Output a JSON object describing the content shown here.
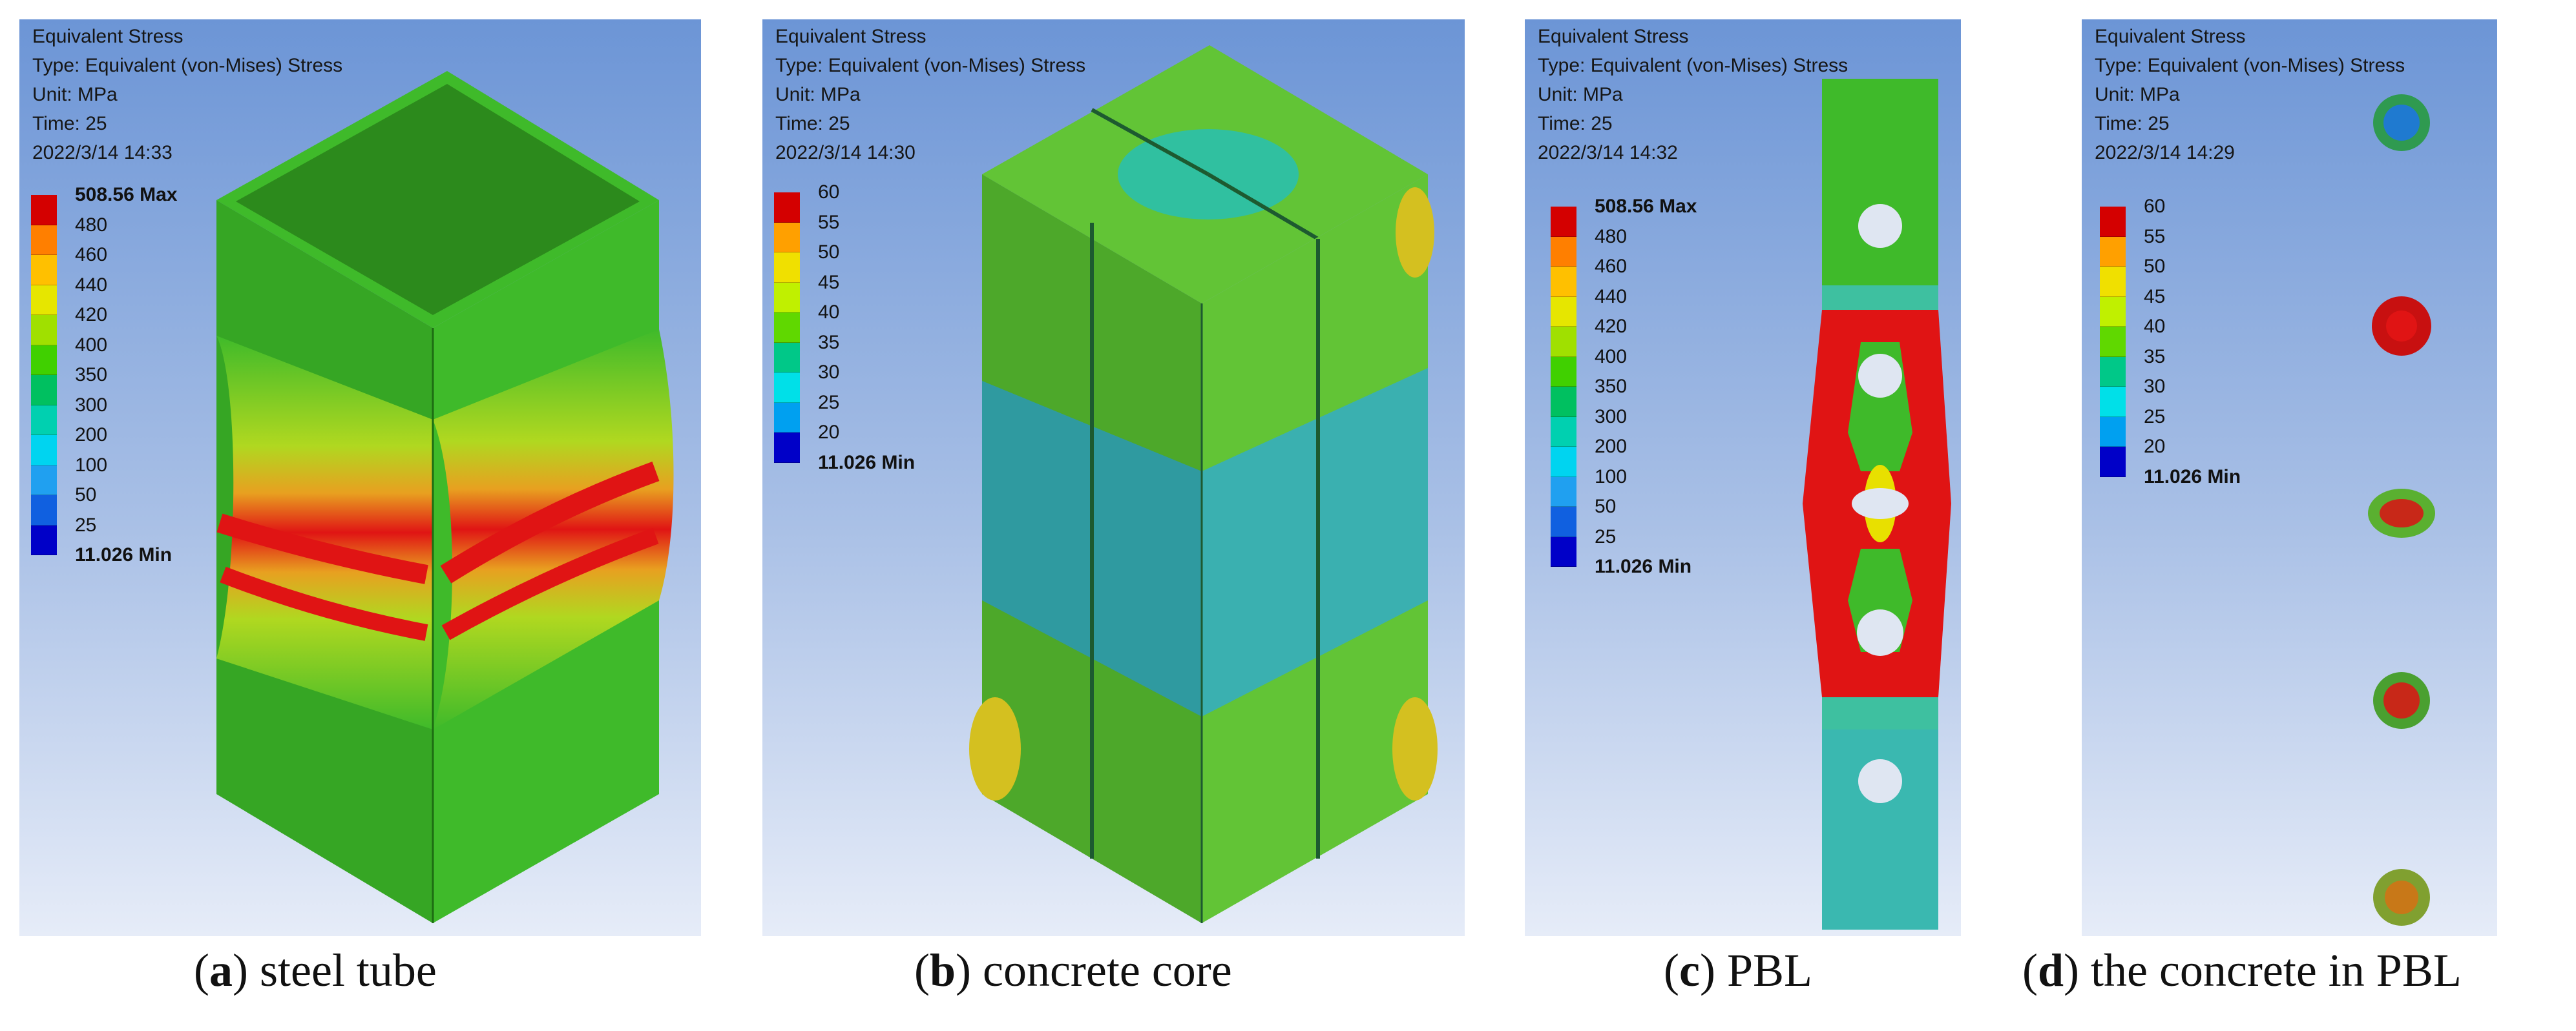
{
  "panels": [
    {
      "id": "a",
      "info": [
        "Equivalent Stress",
        "Type: Equivalent (von-Mises) Stress",
        "Unit: MPa",
        "Time: 25",
        "2022/3/14 14:33"
      ],
      "legend": [
        "508.56 Max",
        "480",
        "460",
        "440",
        "420",
        "400",
        "350",
        "300",
        "200",
        "100",
        "50",
        "25",
        "11.026 Min"
      ],
      "caption_letter": "a",
      "caption_text": "steel tube"
    },
    {
      "id": "b",
      "info": [
        "Equivalent Stress",
        "Type: Equivalent (von-Mises) Stress",
        "Unit: MPa",
        "Time: 25",
        "2022/3/14 14:30"
      ],
      "legend": [
        "60",
        "55",
        "50",
        "45",
        "40",
        "35",
        "30",
        "25",
        "20",
        "11.026 Min"
      ],
      "caption_letter": "b",
      "caption_text": "concrete core"
    },
    {
      "id": "c",
      "info": [
        "Equivalent Stress",
        "Type: Equivalent (von-Mises) Stress",
        "Unit: MPa",
        "Time: 25",
        "2022/3/14 14:32"
      ],
      "legend": [
        "508.56 Max",
        "480",
        "460",
        "440",
        "420",
        "400",
        "350",
        "300",
        "200",
        "100",
        "50",
        "25",
        "11.026 Min"
      ],
      "caption_letter": "c",
      "caption_text": "PBL"
    },
    {
      "id": "d",
      "info": [
        "Equivalent Stress",
        "Type: Equivalent (von-Mises) Stress",
        "Unit: MPa",
        "Time: 25",
        "2022/3/14 14:29"
      ],
      "legend": [
        "60",
        "55",
        "50",
        "45",
        "40",
        "35",
        "30",
        "25",
        "20",
        "11.026 Min"
      ],
      "caption_letter": "d",
      "caption_text": "the concrete in PBL"
    }
  ],
  "colors": {
    "legend12": [
      "#d40000",
      "#ff7f00",
      "#ffc000",
      "#e6e600",
      "#a0e000",
      "#40d000",
      "#00c060",
      "#00d0b0",
      "#00d4f0",
      "#20a0f0",
      "#1060e0",
      "#0000c8"
    ],
    "legend9": [
      "#d40000",
      "#ffa000",
      "#f0e000",
      "#c0f000",
      "#60d800",
      "#00c888",
      "#00e0e8",
      "#00a0f0",
      "#0000c8"
    ],
    "green": "#3fba2a",
    "red": "#e01414",
    "cyan": "#2fb4b4"
  }
}
